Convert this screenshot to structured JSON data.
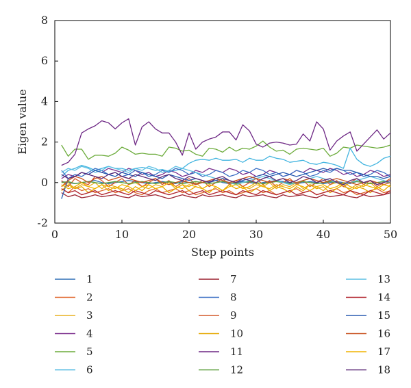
{
  "chart_data": {
    "type": "line",
    "xlabel": "Step points",
    "ylabel": "Eigen value",
    "xlim": [
      0,
      50
    ],
    "ylim": [
      -2,
      8
    ],
    "xticks": [
      0,
      10,
      20,
      30,
      40,
      50
    ],
    "yticks": [
      -2,
      0,
      2,
      4,
      6,
      8
    ],
    "grid": false,
    "legend_position": "bottom",
    "x": [
      1,
      2,
      3,
      4,
      5,
      6,
      7,
      8,
      9,
      10,
      11,
      12,
      13,
      14,
      15,
      16,
      17,
      18,
      19,
      20,
      21,
      22,
      23,
      24,
      25,
      26,
      27,
      28,
      29,
      30,
      31,
      32,
      33,
      34,
      35,
      36,
      37,
      38,
      39,
      40,
      41,
      42,
      43,
      44,
      45,
      46,
      47,
      48,
      49,
      50
    ],
    "series": [
      {
        "name": "1",
        "color": "#2e6fb5",
        "values": [
          0.05,
          0.0,
          -0.05,
          0.0,
          0.05,
          0.1,
          0.0,
          -0.05,
          0.0,
          0.05,
          0.1,
          0.05,
          0.0,
          -0.05,
          0.0,
          0.05,
          0.0,
          -0.05,
          0.05,
          0.0,
          -0.05,
          0.0,
          0.05,
          0.1,
          0.0,
          -0.05,
          0.0,
          0.05,
          0.0,
          -0.05,
          0.0,
          0.05,
          0.1,
          0.05,
          0.0,
          -0.05,
          0.0,
          0.05,
          0.0,
          -0.05,
          0.0,
          0.05,
          0.0,
          -0.05,
          0.05,
          0.0,
          -0.05,
          0.0,
          0.05,
          0.0
        ]
      },
      {
        "name": "2",
        "color": "#e0662a",
        "values": [
          -0.3,
          -0.5,
          -0.2,
          -0.4,
          -0.3,
          -0.5,
          -0.4,
          -0.3,
          -0.5,
          -0.4,
          -0.3,
          -0.5,
          -0.6,
          -0.4,
          -0.3,
          -0.5,
          -0.4,
          -0.3,
          -0.5,
          -0.4,
          -0.6,
          -0.5,
          -0.4,
          -0.3,
          -0.5,
          -0.4,
          -0.6,
          -0.5,
          -0.4,
          -0.3,
          -0.5,
          -0.4,
          -0.6,
          -0.5,
          -0.4,
          -0.3,
          -0.5,
          -0.4,
          -0.6,
          -0.5,
          -0.4,
          -0.3,
          -0.5,
          -0.4,
          -0.6,
          -0.5,
          -0.4,
          -0.3,
          -0.5,
          -0.4
        ]
      },
      {
        "name": "3",
        "color": "#e8b021",
        "values": [
          -0.2,
          0.0,
          -0.3,
          -0.1,
          -0.2,
          0.0,
          -0.3,
          -0.1,
          -0.2,
          -0.4,
          -0.1,
          0.0,
          -0.2,
          -0.3,
          -0.1,
          -0.2,
          0.0,
          -0.3,
          -0.1,
          -0.2,
          0.0,
          -0.3,
          -0.1,
          -0.2,
          -0.4,
          -0.1,
          0.0,
          -0.2,
          -0.3,
          -0.1,
          -0.2,
          0.0,
          -0.3,
          -0.1,
          -0.2,
          0.0,
          -0.3,
          -0.1,
          -0.2,
          -0.4,
          -0.1,
          0.0,
          -0.2,
          -0.3,
          -0.1,
          -0.2,
          0.0,
          -0.3,
          -0.1,
          -0.2
        ]
      },
      {
        "name": "4",
        "color": "#7a2d8c",
        "values": [
          0.2,
          0.4,
          0.3,
          0.5,
          0.4,
          0.6,
          0.5,
          0.7,
          0.6,
          0.5,
          0.7,
          0.6,
          0.4,
          0.5,
          0.3,
          0.4,
          0.6,
          0.5,
          0.3,
          0.4,
          0.6,
          0.5,
          0.7,
          0.6,
          0.5,
          0.7,
          0.6,
          0.4,
          0.5,
          0.3,
          0.4,
          0.6,
          0.5,
          0.3,
          0.4,
          0.6,
          0.5,
          0.7,
          0.6,
          0.5,
          0.7,
          0.6,
          0.4,
          0.5,
          0.3,
          0.4,
          0.6,
          0.5,
          0.3,
          0.4
        ]
      },
      {
        "name": "5",
        "color": "#6bab3a",
        "values": [
          1.85,
          1.3,
          1.65,
          1.65,
          1.15,
          1.35,
          1.35,
          1.3,
          1.45,
          1.75,
          1.6,
          1.4,
          1.45,
          1.4,
          1.4,
          1.3,
          1.75,
          1.7,
          1.55,
          1.6,
          1.4,
          1.3,
          1.7,
          1.65,
          1.5,
          1.75,
          1.55,
          1.7,
          1.65,
          1.8,
          2.05,
          1.75,
          1.55,
          1.6,
          1.4,
          1.65,
          1.7,
          1.65,
          1.6,
          1.7,
          1.3,
          1.45,
          1.75,
          1.7,
          1.85,
          1.8,
          1.75,
          1.7,
          1.75,
          1.85
        ]
      },
      {
        "name": "6",
        "color": "#44b5e0",
        "values": [
          0.3,
          0.6,
          0.7,
          0.85,
          0.75,
          0.6,
          0.7,
          0.8,
          0.7,
          0.7,
          0.6,
          0.7,
          0.75,
          0.7,
          0.6,
          0.65,
          0.55,
          0.6,
          0.7,
          0.95,
          1.1,
          1.15,
          1.1,
          1.2,
          1.1,
          1.1,
          1.15,
          1.0,
          1.2,
          1.1,
          1.1,
          1.3,
          1.2,
          1.15,
          1.0,
          1.05,
          1.1,
          0.95,
          0.9,
          1.0,
          0.95,
          0.85,
          0.7,
          1.7,
          1.15,
          0.9,
          0.8,
          0.95,
          1.2,
          1.3
        ]
      },
      {
        "name": "7",
        "color": "#9a1f2d",
        "values": [
          -0.5,
          -0.7,
          -0.6,
          -0.75,
          -0.7,
          -0.6,
          -0.7,
          -0.65,
          -0.6,
          -0.7,
          -0.75,
          -0.6,
          -0.7,
          -0.65,
          -0.6,
          -0.7,
          -0.8,
          -0.7,
          -0.6,
          -0.7,
          -0.75,
          -0.6,
          -0.7,
          -0.65,
          -0.6,
          -0.7,
          -0.75,
          -0.6,
          -0.7,
          -0.65,
          -0.6,
          -0.7,
          -0.75,
          -0.6,
          -0.7,
          -0.65,
          -0.6,
          -0.7,
          -0.75,
          -0.6,
          -0.7,
          -0.65,
          -0.6,
          -0.7,
          -0.75,
          -0.6,
          -0.7,
          -0.65,
          -0.6,
          -0.5
        ]
      },
      {
        "name": "8",
        "color": "#3b6fc4",
        "values": [
          0.6,
          0.2,
          0.4,
          0.3,
          0.5,
          0.7,
          0.6,
          0.4,
          0.5,
          0.3,
          0.4,
          0.6,
          0.5,
          0.3,
          0.4,
          0.6,
          0.5,
          0.7,
          0.6,
          0.4,
          0.5,
          0.3,
          0.4,
          0.6,
          0.5,
          0.3,
          0.4,
          0.6,
          0.5,
          0.7,
          0.6,
          0.4,
          0.5,
          0.3,
          0.4,
          0.6,
          0.5,
          0.3,
          0.4,
          0.6,
          0.5,
          0.7,
          0.6,
          0.4,
          0.5,
          0.3,
          0.4,
          0.6,
          0.5,
          0.3
        ]
      },
      {
        "name": "9",
        "color": "#d4582a",
        "values": [
          0.1,
          -0.2,
          0.2,
          0.0,
          -0.1,
          0.3,
          0.1,
          -0.2,
          0.0,
          0.2,
          -0.1,
          0.1,
          -0.2,
          0.0,
          0.2,
          -0.1,
          0.1,
          -0.2,
          0.0,
          0.2,
          -0.1,
          0.1,
          -0.2,
          0.0,
          0.2,
          -0.1,
          0.1,
          -0.2,
          0.0,
          0.2,
          -0.1,
          0.1,
          -0.2,
          0.0,
          0.2,
          -0.1,
          0.1,
          -0.2,
          0.0,
          0.2,
          -0.1,
          0.1,
          -0.2,
          0.0,
          0.2,
          -0.1,
          0.1,
          -0.2,
          0.0,
          0.2
        ]
      },
      {
        "name": "10",
        "color": "#e5a800",
        "values": [
          -0.4,
          -0.1,
          -0.3,
          -0.2,
          -0.5,
          -0.3,
          -0.1,
          -0.4,
          -0.2,
          -0.3,
          -0.5,
          -0.2,
          -0.4,
          -0.1,
          -0.3,
          -0.2,
          -0.5,
          -0.3,
          -0.1,
          -0.4,
          -0.2,
          -0.3,
          -0.5,
          -0.2,
          -0.4,
          -0.1,
          -0.3,
          -0.2,
          -0.5,
          -0.3,
          -0.1,
          -0.4,
          -0.2,
          -0.3,
          -0.5,
          -0.2,
          -0.4,
          -0.1,
          -0.3,
          -0.2,
          -0.5,
          -0.3,
          -0.1,
          -0.4,
          -0.2,
          -0.3,
          -0.5,
          -0.2,
          -0.4,
          -0.1
        ]
      },
      {
        "name": "11",
        "color": "#6d2784",
        "values": [
          0.85,
          1.0,
          1.4,
          2.45,
          2.65,
          2.8,
          3.05,
          2.95,
          2.65,
          2.95,
          3.15,
          1.85,
          2.75,
          3.0,
          2.65,
          2.45,
          2.45,
          2.0,
          1.35,
          2.45,
          1.65,
          2.0,
          2.15,
          2.25,
          2.5,
          2.5,
          2.1,
          2.85,
          2.55,
          1.9,
          1.75,
          1.95,
          2.0,
          1.95,
          1.85,
          1.9,
          2.4,
          2.05,
          3.0,
          2.65,
          1.6,
          2.05,
          2.3,
          2.5,
          1.55,
          1.9,
          2.25,
          2.6,
          2.15,
          2.45
        ]
      },
      {
        "name": "12",
        "color": "#5a9e3a",
        "values": [
          0.0,
          0.05,
          -0.05,
          0.0,
          0.05,
          0.0,
          -0.05,
          0.0,
          0.05,
          0.0,
          -0.05,
          0.0,
          0.05,
          0.0,
          -0.05,
          0.0,
          0.05,
          0.0,
          -0.05,
          0.0,
          0.05,
          0.0,
          -0.05,
          0.0,
          0.05,
          0.0,
          -0.05,
          0.0,
          0.05,
          0.0,
          -0.05,
          0.0,
          0.05,
          0.0,
          -0.05,
          0.0,
          0.05,
          0.0,
          -0.05,
          0.0,
          0.05,
          0.0,
          -0.05,
          0.0,
          0.05,
          0.0,
          -0.05,
          0.0,
          0.05,
          0.0
        ]
      },
      {
        "name": "13",
        "color": "#5bbfe3",
        "values": [
          0.5,
          0.7,
          0.6,
          0.8,
          0.7,
          0.5,
          0.6,
          0.8,
          0.7,
          0.6,
          0.5,
          0.7,
          0.6,
          0.8,
          0.7,
          0.5,
          0.6,
          0.8,
          0.7,
          0.6,
          0.5,
          0.4,
          0.3,
          0.2,
          0.1,
          0.0,
          -0.1,
          0.0,
          0.1,
          0.2,
          0.3,
          0.2,
          0.1,
          0.0,
          -0.1,
          0.0,
          0.1,
          0.2,
          0.3,
          0.2,
          0.1,
          0.0,
          -0.1,
          0.0,
          0.1,
          0.2,
          0.3,
          0.2,
          0.1,
          0.0
        ]
      },
      {
        "name": "14",
        "color": "#b0202a",
        "values": [
          -0.3,
          -0.5,
          -0.4,
          -0.6,
          -0.5,
          -0.4,
          -0.6,
          -0.5,
          -0.4,
          -0.5,
          -0.6,
          -0.4,
          -0.5,
          -0.6,
          -0.4,
          -0.5,
          -0.6,
          -0.5,
          -0.4,
          -0.6,
          -0.5,
          -0.4,
          -0.6,
          -0.5,
          -0.4,
          -0.5,
          -0.6,
          -0.4,
          -0.5,
          -0.6,
          -0.4,
          -0.5,
          -0.6,
          -0.5,
          -0.4,
          -0.6,
          -0.5,
          -0.4,
          -0.6,
          -0.5,
          -0.4,
          -0.5,
          -0.6,
          -0.4,
          -0.5,
          -0.6,
          -0.4,
          -0.5,
          -0.6,
          -0.4
        ]
      },
      {
        "name": "15",
        "color": "#2a5cb0",
        "values": [
          -0.8,
          0.2,
          0.3,
          0.5,
          0.4,
          0.6,
          0.5,
          0.4,
          0.3,
          0.5,
          0.4,
          0.3,
          0.5,
          0.4,
          0.3,
          0.2,
          0.4,
          0.3,
          0.2,
          0.1,
          0.2,
          0.1,
          0.0,
          0.1,
          0.2,
          0.1,
          0.0,
          0.1,
          0.2,
          0.3,
          0.4,
          0.3,
          0.4,
          0.5,
          0.4,
          0.3,
          0.4,
          0.5,
          0.6,
          0.7,
          0.6,
          0.7,
          0.6,
          0.6,
          0.5,
          0.4,
          0.3,
          0.3,
          0.2,
          0.3
        ]
      },
      {
        "name": "16",
        "color": "#c8501e",
        "values": [
          -0.2,
          0.1,
          0.3,
          0.2,
          0.0,
          0.2,
          0.3,
          0.1,
          0.2,
          0.3,
          0.2,
          0.1,
          0.0,
          0.1,
          0.2,
          0.0,
          -0.1,
          0.0,
          0.1,
          0.0,
          -0.1,
          0.0,
          0.1,
          0.2,
          0.1,
          0.0,
          0.1,
          0.2,
          0.3,
          0.2,
          0.1,
          0.0,
          0.1,
          0.2,
          0.1,
          0.0,
          0.1,
          0.2,
          0.1,
          0.0,
          0.1,
          0.2,
          0.1,
          0.0,
          -0.1,
          0.0,
          0.1,
          0.0,
          -0.1,
          0.0
        ]
      },
      {
        "name": "17",
        "color": "#f0b400",
        "values": [
          -0.1,
          -0.3,
          -0.2,
          0.0,
          -0.2,
          -0.3,
          -0.1,
          -0.2,
          -0.3,
          -0.1,
          -0.2,
          -0.4,
          -0.2,
          -0.1,
          -0.3,
          -0.2,
          0.0,
          -0.2,
          -0.3,
          -0.1,
          -0.2,
          -0.3,
          -0.1,
          -0.2,
          -0.4,
          -0.2,
          -0.1,
          -0.3,
          -0.2,
          0.0,
          -0.2,
          -0.3,
          -0.1,
          -0.2,
          -0.3,
          -0.1,
          -0.2,
          -0.4,
          -0.2,
          -0.1,
          -0.3,
          -0.2,
          0.0,
          -0.2,
          -0.3,
          -0.1,
          -0.2,
          -0.3,
          -0.1,
          -0.2
        ]
      },
      {
        "name": "18",
        "color": "#5e2a78",
        "values": [
          0.4,
          0.2,
          0.3,
          0.5,
          0.4,
          0.3,
          0.2,
          0.4,
          0.5,
          0.3,
          0.2,
          0.4,
          0.3,
          0.2,
          0.1,
          0.3,
          0.4,
          0.2,
          0.1,
          0.3,
          0.2,
          0.1,
          0.0,
          0.2,
          0.3,
          0.1,
          0.0,
          0.2,
          0.1,
          0.0,
          0.2,
          0.3,
          0.1,
          0.2,
          0.0,
          0.1,
          0.3,
          0.2,
          0.0,
          0.1,
          0.2,
          0.0,
          -0.1,
          0.1,
          0.2,
          0.0,
          0.1,
          -0.1,
          0.0,
          0.1
        ]
      }
    ]
  }
}
